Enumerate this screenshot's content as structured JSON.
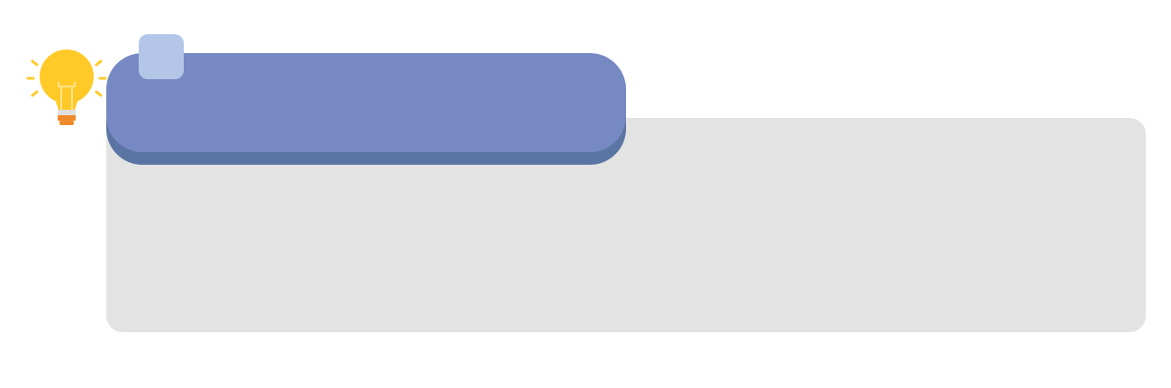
{
  "header": {
    "title": ""
  },
  "content": {
    "text": ""
  },
  "icons": {
    "bulb": "lightbulb-icon"
  },
  "colors": {
    "panel_background": "#e3e3e3",
    "banner": "#7789c2",
    "banner_shadow": "#5a74a3",
    "corner_tab": "#b3c6e8",
    "bulb_glass": "#ffc928",
    "bulb_base": "#f08b2c",
    "bulb_rays": "#ffc928"
  }
}
